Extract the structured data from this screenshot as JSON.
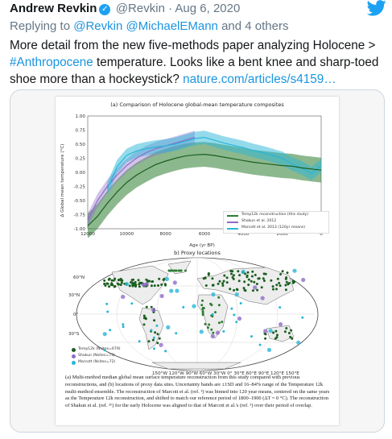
{
  "header": {
    "name": "Andrew Revkin",
    "handle": "@Revkin · Aug 6, 2020"
  },
  "reply": {
    "prefix": "Replying to",
    "users": "@Revkin @MichaelEMann",
    "suffix": "and 4 others"
  },
  "tweet": {
    "text1": "More detail from the new five-methods paper analyzing Holocene > ",
    "hashtag": "#Anthropocene",
    "text2": " temperature. Looks like a bent knee and sharp-toed shoe more than a hockeystick? ",
    "link": "nature.com/articles/s4159…"
  },
  "figure": {
    "panel_a_title": "(a) Comparison of Holocene global-mean temperature composites",
    "panel_b_title": "b) Proxy locations",
    "chart_data": {
      "type": "line",
      "title": "(a) Comparison of Holocene global-mean temperature composites",
      "xlabel": "Age (yr BP)",
      "ylabel": "Δ Global mean temperature (°C)",
      "xlim": [
        12000,
        0
      ],
      "ylim": [
        -1.0,
        1.0
      ],
      "xticks": [
        "12000",
        "10000",
        "8000",
        "6000",
        "4000",
        "2000",
        "0"
      ],
      "yticks": [
        "1.00",
        "0.75",
        "0.50",
        "0.25",
        "0.00",
        "-0.25",
        "-0.50",
        "-0.75",
        "-1.00"
      ],
      "series": [
        {
          "name": "Temp12k reconstruction (this study)",
          "color": "#2e7d32",
          "x": [
            12000,
            11500,
            11000,
            10500,
            10000,
            9500,
            9000,
            8500,
            8000,
            7500,
            7000,
            6500,
            6000,
            5500,
            5000,
            4500,
            4000,
            3500,
            3000,
            2500,
            2000,
            1500,
            1000,
            500,
            0
          ],
          "values": [
            -0.95,
            -0.78,
            -0.55,
            -0.35,
            -0.18,
            -0.05,
            0.05,
            0.14,
            0.2,
            0.25,
            0.29,
            0.31,
            0.32,
            0.3,
            0.27,
            0.24,
            0.21,
            0.18,
            0.16,
            0.14,
            0.12,
            0.11,
            0.08,
            0.06,
            0.04
          ]
        },
        {
          "name": "Shakun et al. 2012",
          "color": "#8e6cc8",
          "x": [
            12000,
            11500,
            11000,
            10500,
            10000,
            9500,
            9000,
            8500,
            8000,
            7500,
            7000,
            6500
          ],
          "values": [
            -0.85,
            -0.5,
            -0.25,
            -0.05,
            0.12,
            0.25,
            0.35,
            0.42,
            0.47,
            0.52,
            0.57,
            0.62
          ]
        },
        {
          "name": "Marcott et al. 2013 (120yr means)",
          "color": "#29b6d8",
          "x": [
            11000,
            10500,
            10000,
            9500,
            9000,
            8500,
            8000,
            7500,
            7000,
            6500,
            6000,
            5500,
            5000,
            4500,
            4000,
            3500,
            3000,
            2500,
            2000,
            1500,
            1000,
            500,
            0
          ],
          "values": [
            -0.3,
            0.1,
            0.3,
            0.38,
            0.42,
            0.45,
            0.47,
            0.5,
            0.55,
            0.6,
            0.62,
            0.57,
            0.52,
            0.48,
            0.44,
            0.39,
            0.35,
            0.3,
            0.25,
            0.15,
            0.08,
            -0.02,
            0.12
          ]
        }
      ]
    },
    "map_legend": [
      {
        "label": "Temp12k (Nsites=679)",
        "color": "#1b5e20"
      },
      {
        "label": "Shakun (Nsites=73)",
        "color": "#8e6cc8"
      },
      {
        "label": "Marcott (Nsites=72)",
        "color": "#29b6d8"
      }
    ],
    "caption": "(a) Multi-method median global mean surface temperature reconstruction from this study compared with previous reconstructions, and (b) locations of proxy data sites. Uncertainty bands are ±1SD and 16–84% range of the Temperature 12k multi-method ensemble. The reconstruction of Marcott et al. (ref. ³) was binned into 120 year means, centered on the same years as the Temperature 12k reconstruction, and shifted to match our reference period of 1800–1900 (ΔT = 0 °C). The reconstruction of Shakun et al. (ref. ²⁶) for the early Holocene was aligned to that of Marcott et al.'s (ref. ³) over their period of overlap."
  },
  "colors": {
    "accent": "#1b95e0",
    "muted": "#657786",
    "bird": "#1da1f2"
  }
}
